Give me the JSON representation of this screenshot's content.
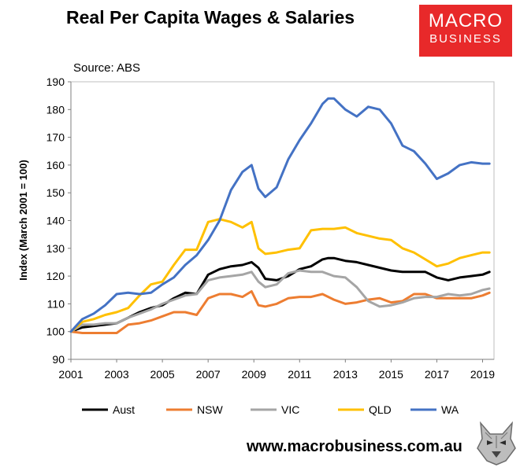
{
  "header": {
    "title": "Real Per Capita Wages & Salaries",
    "source": "Source: ABS",
    "logo_line1": "MACRO",
    "logo_line2": "BUSINESS"
  },
  "footer": {
    "website": "www.macrobusiness.com.au"
  },
  "colors": {
    "Aust": "#000000",
    "NSW": "#ed7d31",
    "VIC": "#a5a5a5",
    "QLD": "#ffc000",
    "WA": "#4472c4"
  },
  "chart_data": {
    "type": "line",
    "title": "Real Per Capita Wages & Salaries",
    "xlabel": "",
    "ylabel": "Index (March 2001 = 100)",
    "xlim": [
      2001,
      2019.5
    ],
    "ylim": [
      90,
      190
    ],
    "xticks": [
      2001,
      2003,
      2005,
      2007,
      2009,
      2011,
      2013,
      2015,
      2017,
      2019
    ],
    "yticks": [
      90,
      100,
      110,
      120,
      130,
      140,
      150,
      160,
      170,
      180,
      190
    ],
    "grid": false,
    "legend_position": "bottom",
    "series": [
      {
        "name": "Aust",
        "x": [
          2001,
          2001.5,
          2002,
          2002.5,
          2003,
          2003.5,
          2004,
          2004.5,
          2005,
          2005.5,
          2006,
          2006.5,
          2007,
          2007.5,
          2008,
          2008.5,
          2008.9,
          2009.2,
          2009.5,
          2010,
          2010.5,
          2011,
          2011.5,
          2012,
          2012.25,
          2012.5,
          2013,
          2013.5,
          2014,
          2014.5,
          2015,
          2015.5,
          2016,
          2016.5,
          2017,
          2017.5,
          2018,
          2018.5,
          2019,
          2019.3
        ],
        "y": [
          100,
          101.5,
          102,
          102.5,
          103,
          105,
          107,
          108.5,
          109.5,
          112,
          114,
          113.5,
          120.5,
          122.5,
          123.5,
          124,
          125,
          123,
          119,
          118.5,
          120,
          122.5,
          123.5,
          126,
          126.5,
          126.5,
          125.5,
          125,
          124,
          123,
          122,
          121.5,
          121.5,
          121.5,
          119.5,
          118.5,
          119.5,
          120,
          120.5,
          121.5
        ]
      },
      {
        "name": "NSW",
        "x": [
          2001,
          2001.5,
          2002,
          2002.5,
          2003,
          2003.5,
          2004,
          2004.5,
          2005,
          2005.5,
          2006,
          2006.5,
          2007,
          2007.5,
          2008,
          2008.5,
          2008.9,
          2009.2,
          2009.5,
          2010,
          2010.5,
          2011,
          2011.5,
          2012,
          2012.5,
          2013,
          2013.5,
          2014,
          2014.5,
          2015,
          2015.5,
          2016,
          2016.5,
          2017,
          2017.5,
          2018,
          2018.5,
          2019,
          2019.3
        ],
        "y": [
          100,
          99.5,
          99.5,
          99.5,
          99.5,
          102.5,
          103,
          104,
          105.5,
          107,
          107,
          106,
          112,
          113.5,
          113.5,
          112.5,
          114.5,
          109.5,
          109,
          110,
          112,
          112.5,
          112.5,
          113.5,
          111.5,
          110,
          110.5,
          111.5,
          112,
          110.5,
          111,
          113.5,
          113.5,
          112,
          112,
          112,
          112,
          113,
          114
        ]
      },
      {
        "name": "VIC",
        "x": [
          2001,
          2001.5,
          2002,
          2002.5,
          2003,
          2003.5,
          2004,
          2004.5,
          2005,
          2005.5,
          2006,
          2006.5,
          2007,
          2007.5,
          2008,
          2008.5,
          2008.9,
          2009.2,
          2009.5,
          2010,
          2010.5,
          2011,
          2011.5,
          2012,
          2012.5,
          2013,
          2013.5,
          2014,
          2014.5,
          2015,
          2015.5,
          2016,
          2016.5,
          2017,
          2017.5,
          2018,
          2018.5,
          2019,
          2019.3
        ],
        "y": [
          100,
          102.5,
          102.5,
          103,
          103,
          105,
          106.5,
          108,
          110,
          111.5,
          113,
          113.5,
          118.5,
          119.5,
          120,
          120.5,
          121.5,
          118,
          116,
          117,
          121,
          122,
          121.5,
          121.5,
          120,
          119.5,
          116,
          111,
          109,
          109.5,
          110.5,
          112,
          112.5,
          112.5,
          113.5,
          113,
          113.5,
          115,
          115.5
        ]
      },
      {
        "name": "QLD",
        "x": [
          2001,
          2001.5,
          2002,
          2002.5,
          2003,
          2003.5,
          2004,
          2004.5,
          2005,
          2005.5,
          2006,
          2006.5,
          2007,
          2007.5,
          2008,
          2008.5,
          2008.9,
          2009.2,
          2009.5,
          2010,
          2010.5,
          2011,
          2011.5,
          2012,
          2012.5,
          2013,
          2013.5,
          2014,
          2014.5,
          2015,
          2015.5,
          2016,
          2016.5,
          2017,
          2017.5,
          2018,
          2018.5,
          2019,
          2019.3
        ],
        "y": [
          100,
          103.5,
          104.5,
          106,
          107,
          108.5,
          113,
          117,
          118,
          124,
          129.5,
          129.5,
          139.5,
          140.5,
          139.5,
          137.5,
          139.5,
          130,
          128,
          128.5,
          129.5,
          130,
          136.5,
          137,
          137,
          137.5,
          135.5,
          134.5,
          133.5,
          133,
          130,
          128.5,
          126,
          123.5,
          124.5,
          126.5,
          127.5,
          128.5,
          128.5
        ]
      },
      {
        "name": "WA",
        "x": [
          2001,
          2001.5,
          2002,
          2002.5,
          2003,
          2003.5,
          2004,
          2004.5,
          2005,
          2005.5,
          2006,
          2006.5,
          2007,
          2007.5,
          2008,
          2008.5,
          2008.9,
          2009.2,
          2009.5,
          2010,
          2010.5,
          2011,
          2011.5,
          2012,
          2012.25,
          2012.5,
          2013,
          2013.5,
          2014,
          2014.5,
          2015,
          2015.5,
          2016,
          2016.5,
          2017,
          2017.5,
          2018,
          2018.5,
          2019,
          2019.3
        ],
        "y": [
          100,
          104.5,
          106.5,
          109.5,
          113.5,
          114,
          113.5,
          114,
          117,
          119.5,
          124,
          127.5,
          133,
          140,
          151,
          157.5,
          160,
          151.5,
          148.5,
          152,
          162,
          169,
          175,
          182,
          184,
          184,
          180,
          177.5,
          181,
          180,
          175,
          167,
          165,
          160.5,
          155,
          157,
          160,
          161,
          160.5,
          160.5
        ]
      }
    ]
  }
}
